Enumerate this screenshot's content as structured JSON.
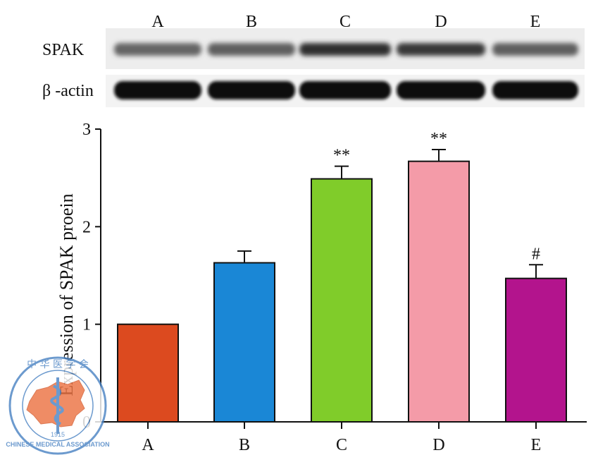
{
  "blot": {
    "lanes": [
      "A",
      "B",
      "C",
      "D",
      "E"
    ],
    "rows": [
      {
        "label": "SPAK",
        "intensity": [
          0.45,
          0.5,
          0.95,
          0.85,
          0.5
        ]
      },
      {
        "label": "β -actin",
        "intensity": [
          1.0,
          1.0,
          1.0,
          0.95,
          0.95
        ]
      }
    ]
  },
  "chart_data": {
    "type": "bar",
    "title": "",
    "xlabel": "",
    "ylabel": "Expression of SPAK proein",
    "categories": [
      "A",
      "B",
      "C",
      "D",
      "E"
    ],
    "values": [
      1.0,
      1.63,
      2.49,
      2.67,
      1.47
    ],
    "errors": [
      0,
      0.12,
      0.13,
      0.12,
      0.14
    ],
    "annotations": [
      "",
      "",
      "**",
      "**",
      "#"
    ],
    "colors": [
      "#dc4a1f",
      "#1a87d6",
      "#80cc2a",
      "#f49ba8",
      "#b3148d"
    ],
    "ylim": [
      0,
      3
    ],
    "yticks": [
      "0",
      "1",
      "2",
      "3"
    ],
    "grid": false,
    "legend": "none"
  },
  "watermark": {
    "top_chars": "中 华 医 学 会",
    "bottom_text": "CHINESE MEDICAL ASSOCIATION",
    "year": "1915"
  }
}
